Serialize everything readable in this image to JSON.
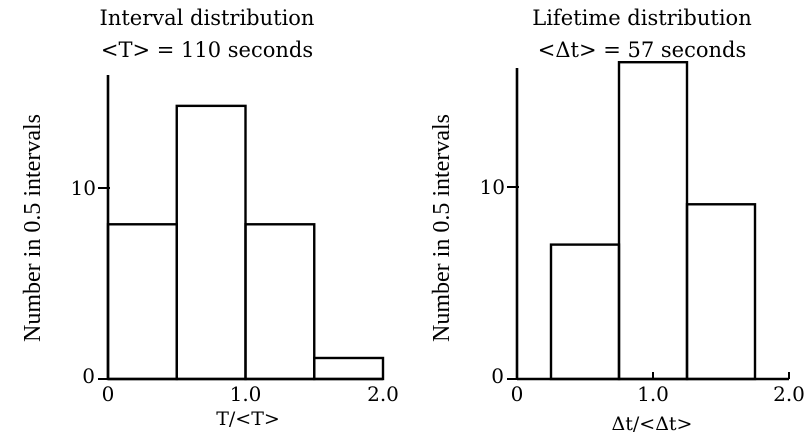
{
  "chart_data": [
    {
      "type": "bar",
      "subtype": "histogram",
      "title": "Interval distribution",
      "subtitle": "<T> = 110 seconds",
      "xlabel": "T/<T>",
      "ylabel": "Number in 0.5 intervals",
      "bins": [
        [
          0,
          0.5
        ],
        [
          0.5,
          1.0
        ],
        [
          1.0,
          1.5
        ],
        [
          1.5,
          2.0
        ]
      ],
      "values": [
        8.1,
        14.3,
        8.1,
        1.1
      ],
      "xlim": [
        0,
        2.0
      ],
      "ylim": [
        0,
        16
      ],
      "xticks": [
        "0",
        "1.0",
        "2.0"
      ],
      "yticks": [
        "0",
        "10"
      ],
      "grid": false
    },
    {
      "type": "bar",
      "subtype": "histogram",
      "title": "Lifetime distribution",
      "subtitle": "<Δt> = 57 seconds",
      "xlabel": "Δt/<Δt>",
      "ylabel": "Number in 0.5 intervals",
      "bins": [
        [
          0.25,
          0.75
        ],
        [
          0.75,
          1.25
        ],
        [
          1.25,
          1.75
        ]
      ],
      "values": [
        7.0,
        16.5,
        9.1
      ],
      "xlim": [
        0,
        2.0
      ],
      "ylim": [
        0,
        16.5
      ],
      "xticks": [
        "0",
        "1.0",
        "2.0"
      ],
      "yticks": [
        "0",
        "10"
      ],
      "grid": false
    }
  ]
}
